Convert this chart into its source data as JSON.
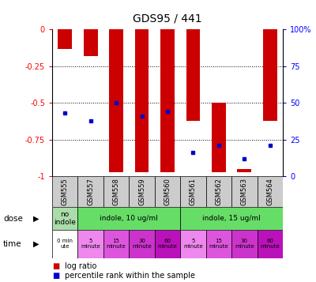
{
  "title": "GDS95 / 441",
  "samples": [
    "GSM555",
    "GSM557",
    "GSM558",
    "GSM559",
    "GSM560",
    "GSM561",
    "GSM562",
    "GSM563",
    "GSM564"
  ],
  "bar_bottoms": [
    -0.13,
    -0.18,
    -0.97,
    -0.97,
    -0.97,
    -0.62,
    -0.97,
    -0.97,
    -0.62
  ],
  "bar_tops": [
    0.0,
    0.0,
    0.0,
    0.0,
    0.0,
    0.0,
    -0.5,
    -0.95,
    0.0
  ],
  "percentile_ranks": [
    0.43,
    0.38,
    0.5,
    0.41,
    0.44,
    0.16,
    0.21,
    0.12,
    0.21
  ],
  "bar_color": "#cc0000",
  "dot_color": "#0000cc",
  "dose_info": [
    [
      0,
      1,
      "no\nindole",
      "#aaddaa"
    ],
    [
      1,
      5,
      "indole, 10 ug/ml",
      "#66dd66"
    ],
    [
      5,
      9,
      "indole, 15 ug/ml",
      "#66dd66"
    ]
  ],
  "time_info": [
    [
      0,
      1,
      "0 min\nute",
      "#ffffff"
    ],
    [
      1,
      2,
      "5\nminute",
      "#ee88ee"
    ],
    [
      2,
      3,
      "15\nminute",
      "#dd55dd"
    ],
    [
      3,
      4,
      "30\nminute",
      "#cc33cc"
    ],
    [
      4,
      5,
      "60\nminute",
      "#bb11bb"
    ],
    [
      5,
      6,
      "5\nminute",
      "#ee88ee"
    ],
    [
      6,
      7,
      "15\nminute",
      "#dd55dd"
    ],
    [
      7,
      8,
      "30\nminute",
      "#cc33cc"
    ],
    [
      8,
      9,
      "60\nminute",
      "#bb11bb"
    ]
  ],
  "bg_color": "#cccccc",
  "chart_bg": "#ffffff",
  "fig_width": 4.0,
  "fig_height": 3.57
}
